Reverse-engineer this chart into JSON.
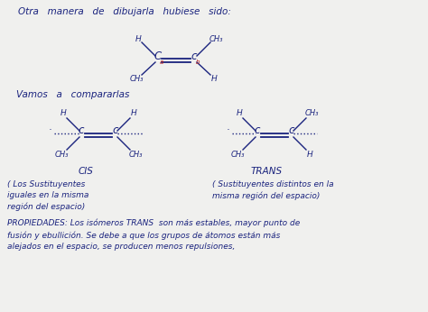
{
  "bg_color": "#f0f0ee",
  "text_color": "#1a237e",
  "red_color": "#b71c1c",
  "title": "Otra   manera   de   dibujarla   hubiese   sido:",
  "vamos": "Vamos   a   compararlas",
  "cis_label": "CIS",
  "trans_label": "TRANS",
  "cis_desc1": "( Los Sustituyentes",
  "cis_desc2": "iguales en la misma",
  "cis_desc3": "región del espacio)",
  "trans_desc1": "( Sustituyentes distintos en la",
  "trans_desc2": "misma región del espacio)",
  "prop1": "PROPIEDADES: Los isómeros TRANS  son más estables, mayor punto de",
  "prop2": "fusión y ebullición. Se debe a que los grupos de átomos están más",
  "prop3": "alejados en el espacio, se producen menos repulsiones,",
  "fig_w": 4.74,
  "fig_h": 3.46,
  "dpi": 100
}
